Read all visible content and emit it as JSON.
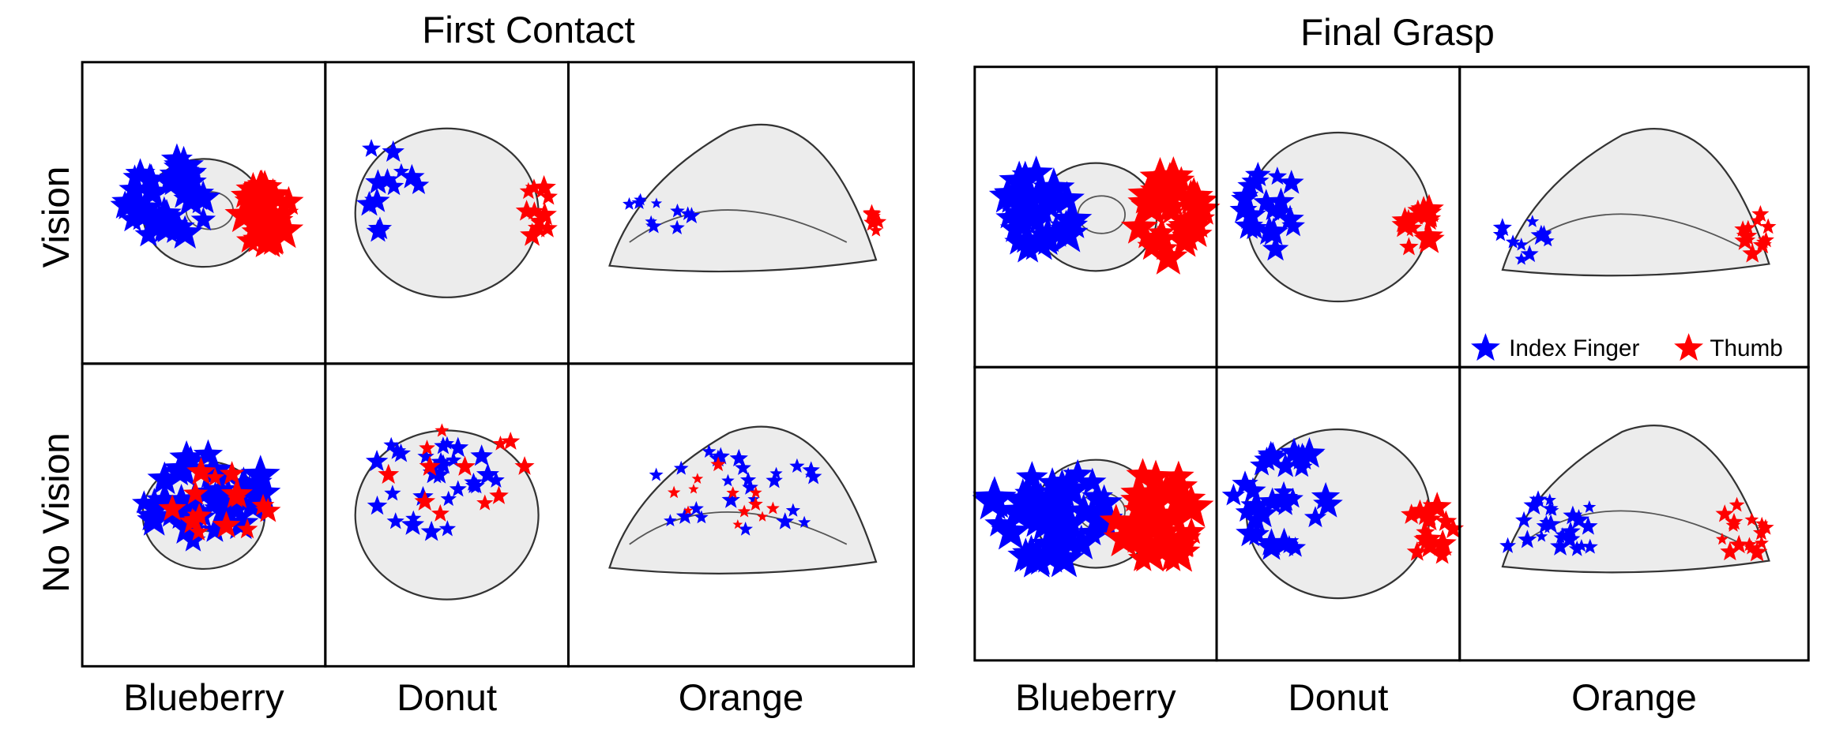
{
  "row_labels": [
    "Vision",
    "No Vision"
  ],
  "panels": [
    {
      "title": "First Contact",
      "columns": [
        "Blueberry",
        "Donut",
        "Orange"
      ]
    },
    {
      "title": "Final Grasp",
      "columns": [
        "Blueberry",
        "Donut",
        "Orange"
      ]
    }
  ],
  "legend": [
    {
      "label": "Index Finger",
      "color": "#0000ff"
    },
    {
      "label": "Thumb",
      "color": "#ff0000"
    }
  ]
}
